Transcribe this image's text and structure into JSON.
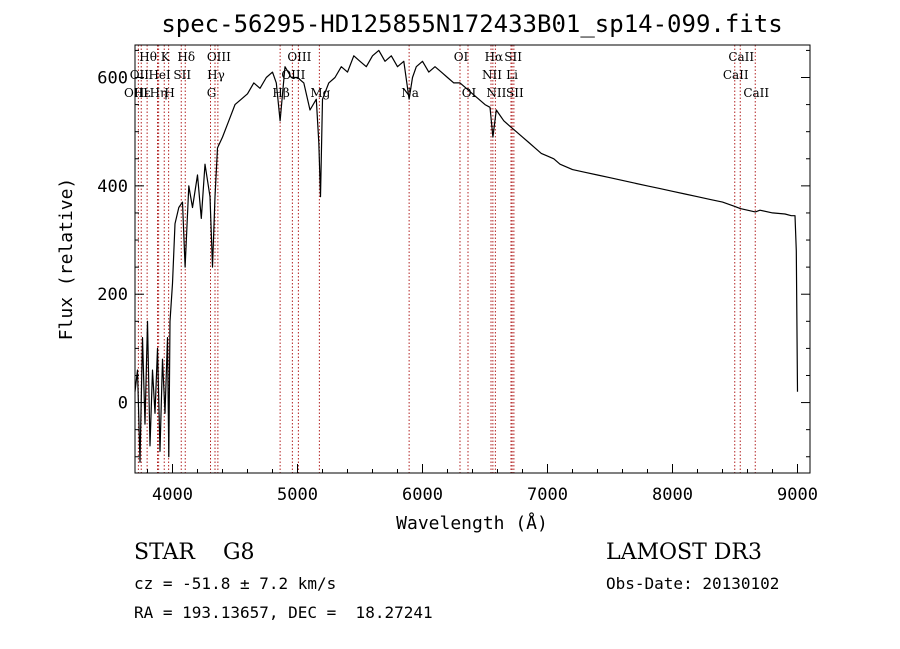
{
  "chart_data": {
    "type": "line",
    "title": "spec-56295-HD125855N172433B01_sp14-099.fits",
    "xlabel": "Wavelength (Å)",
    "ylabel": "Flux (relative)",
    "xlim": [
      3700,
      9100
    ],
    "ylim": [
      -130,
      660
    ],
    "xticks": [
      4000,
      5000,
      6000,
      7000,
      8000,
      9000
    ],
    "yticks": [
      0,
      200,
      400,
      600
    ],
    "series": [
      {
        "name": "flux",
        "x": [
          3700,
          3720,
          3740,
          3760,
          3780,
          3800,
          3820,
          3840,
          3860,
          3880,
          3900,
          3920,
          3940,
          3960,
          3970,
          3980,
          4000,
          4020,
          4050,
          4080,
          4101,
          4130,
          4160,
          4200,
          4230,
          4260,
          4300,
          4320,
          4340,
          4360,
          4400,
          4450,
          4500,
          4550,
          4600,
          4650,
          4700,
          4750,
          4800,
          4830,
          4861,
          4900,
          4950,
          5000,
          5050,
          5100,
          5150,
          5170,
          5184,
          5200,
          5250,
          5300,
          5350,
          5400,
          5450,
          5500,
          5550,
          5600,
          5650,
          5700,
          5750,
          5800,
          5850,
          5893,
          5920,
          5950,
          6000,
          6050,
          6100,
          6150,
          6200,
          6250,
          6300,
          6350,
          6400,
          6450,
          6500,
          6540,
          6563,
          6590,
          6620,
          6650,
          6700,
          6750,
          6800,
          6850,
          6900,
          6950,
          7000,
          7050,
          7100,
          7200,
          7300,
          7400,
          7500,
          7600,
          7700,
          7800,
          7900,
          8000,
          8100,
          8200,
          8300,
          8400,
          8498,
          8542,
          8600,
          8662,
          8700,
          8800,
          8900,
          8950,
          8980,
          8990,
          9000
        ],
        "values": [
          20,
          60,
          -110,
          120,
          -40,
          150,
          -80,
          60,
          -20,
          100,
          -90,
          80,
          -20,
          120,
          -100,
          150,
          220,
          330,
          360,
          370,
          250,
          400,
          360,
          420,
          340,
          440,
          380,
          250,
          380,
          470,
          490,
          520,
          550,
          560,
          570,
          590,
          580,
          600,
          610,
          590,
          520,
          620,
          600,
          600,
          590,
          540,
          560,
          480,
          380,
          560,
          590,
          600,
          620,
          610,
          640,
          630,
          620,
          640,
          650,
          630,
          640,
          620,
          630,
          560,
          600,
          620,
          630,
          610,
          620,
          610,
          600,
          590,
          590,
          580,
          570,
          560,
          550,
          545,
          490,
          540,
          530,
          520,
          510,
          500,
          490,
          480,
          470,
          460,
          455,
          450,
          440,
          430,
          425,
          420,
          415,
          410,
          405,
          400,
          395,
          390,
          385,
          380,
          375,
          370,
          362,
          358,
          355,
          352,
          355,
          350,
          348,
          345,
          345,
          280,
          20
        ]
      }
    ],
    "line_annotations": [
      {
        "label": "Hθ",
        "wavelength": 3797,
        "row": 0
      },
      {
        "label": "K",
        "wavelength": 3934,
        "row": 0
      },
      {
        "label": "Hδ",
        "wavelength": 4102,
        "row": 0
      },
      {
        "label": "OIII",
        "wavelength": 4363,
        "row": 0
      },
      {
        "label": "OIII",
        "wavelength": 5007,
        "row": 0
      },
      {
        "label": "OI",
        "wavelength": 6300,
        "row": 0
      },
      {
        "label": "Hα",
        "wavelength": 6563,
        "row": 0
      },
      {
        "label": "SII",
        "wavelength": 6717,
        "row": 0
      },
      {
        "label": "CaII",
        "wavelength": 8542,
        "row": 0
      },
      {
        "label": "OII",
        "wavelength": 3727,
        "row": 1
      },
      {
        "label": "HeI",
        "wavelength": 3889,
        "row": 1
      },
      {
        "label": "SII",
        "wavelength": 4070,
        "row": 1
      },
      {
        "label": "Hγ",
        "wavelength": 4340,
        "row": 1
      },
      {
        "label": "OIII",
        "wavelength": 4959,
        "row": 1
      },
      {
        "label": "NII",
        "wavelength": 6548,
        "row": 1
      },
      {
        "label": "Li",
        "wavelength": 6708,
        "row": 1
      },
      {
        "label": "CaII",
        "wavelength": 8498,
        "row": 1
      },
      {
        "label": "OIII",
        "wavelength": 3700,
        "row": 2
      },
      {
        "label": "Hε",
        "wavelength": 3750,
        "row": 2
      },
      {
        "label": "Hη",
        "wavelength": 3880,
        "row": 2
      },
      {
        "label": "H",
        "wavelength": 3969,
        "row": 2
      },
      {
        "label": "G",
        "wavelength": 4304,
        "row": 2
      },
      {
        "label": "Hβ",
        "wavelength": 4861,
        "row": 2
      },
      {
        "label": "Mg",
        "wavelength": 5175,
        "row": 2
      },
      {
        "label": "Na",
        "wavelength": 5893,
        "row": 2
      },
      {
        "label": "OI",
        "wavelength": 6364,
        "row": 2
      },
      {
        "label": "NII",
        "wavelength": 6583,
        "row": 2
      },
      {
        "label": "SII",
        "wavelength": 6731,
        "row": 2
      },
      {
        "label": "CaII",
        "wavelength": 8662,
        "row": 2
      }
    ],
    "annotations": {
      "class_line": "STAR    G8",
      "cz_line": "cz = -51.8 ± 7.2 km/s",
      "radec_line": "RA = 193.13657, DEC =  18.27241",
      "survey": "LAMOST DR3",
      "obs_date": "Obs-Date: 20130102"
    }
  },
  "colors": {
    "spectrum": "#000000",
    "line_markers": "#b22222",
    "background": "#ffffff"
  }
}
